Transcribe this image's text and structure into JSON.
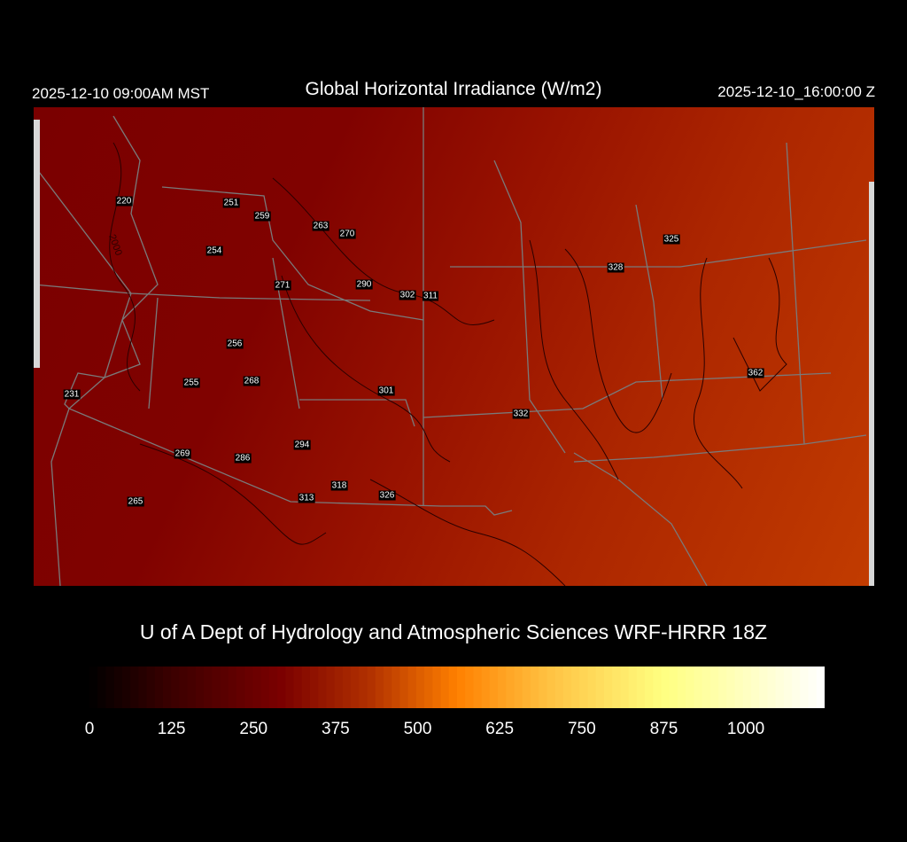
{
  "header": {
    "local_time": "2025-12-10 09:00AM MST",
    "title": "Global Horizontal Irradiance (W/m2)",
    "utc_time": "2025-12-10_16:00:00 Z"
  },
  "map": {
    "variable_units": "W/m2",
    "contour_label": "2000",
    "stations": [
      "220",
      "251",
      "259",
      "263",
      "270",
      "254",
      "271",
      "290",
      "302",
      "311",
      "325",
      "328",
      "256",
      "362",
      "231",
      "255",
      "268",
      "301",
      "332",
      "294",
      "269",
      "286",
      "318",
      "313",
      "326",
      "265"
    ]
  },
  "credit": "U of A Dept of Hydrology and Atmospheric Sciences WRF-HRRR 18Z",
  "colorbar": {
    "ticks": [
      "0",
      "125",
      "250",
      "375",
      "500",
      "625",
      "750",
      "875",
      "1000"
    ],
    "min": 0,
    "max": 1120,
    "colors": [
      "#000000",
      "#3a0000",
      "#7a0000",
      "#b03000",
      "#ff8000",
      "#ffc040",
      "#ffff80",
      "#ffffff"
    ]
  }
}
